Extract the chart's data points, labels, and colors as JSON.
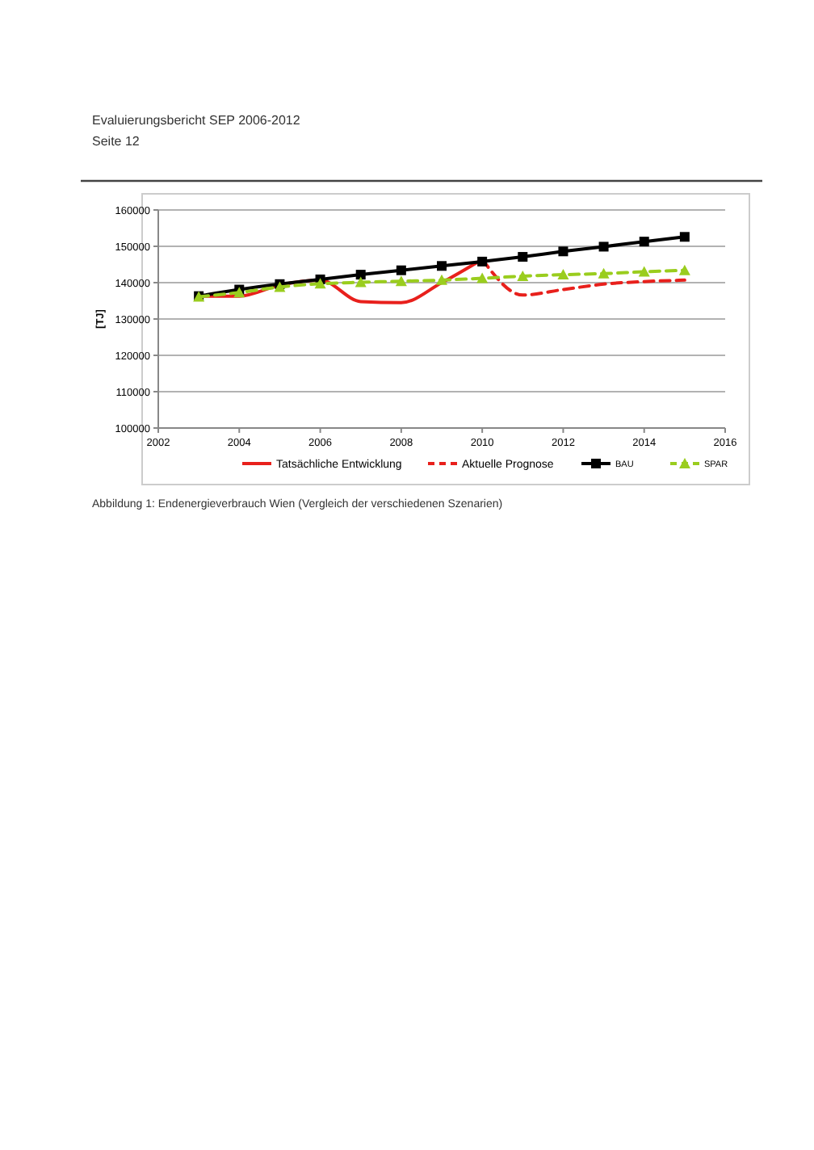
{
  "chart_data": {
    "type": "line",
    "title": "Abbildung 1: Endenergieverbrauch Wien (Vergleich der verschiedenen Szenarien)",
    "annotations": [
      "Evaluierungsbericht SEP 2006-2012",
      "Seite 12"
    ],
    "ylabel": "[TJ]",
    "xlim": [
      2002,
      2016
    ],
    "xticks": [
      2002,
      2004,
      2006,
      2008,
      2010,
      2012,
      2014,
      2016
    ],
    "ylim": [
      100000,
      160000
    ],
    "yticks": [
      100000,
      110000,
      120000,
      130000,
      140000,
      150000,
      160000
    ],
    "grid": "y",
    "legend": "bottom",
    "series": [
      {
        "name": "Tatsächliche Entwicklung",
        "color": "#e8201c",
        "line_style": "solid",
        "marker": "none",
        "x": [
          2003,
          2004,
          2005,
          2006,
          2007,
          2008,
          2009,
          2010
        ],
        "values": [
          136300,
          136300,
          139300,
          140700,
          134800,
          134500,
          140000,
          146400
        ]
      },
      {
        "name": "Aktuelle Prognose",
        "color": "#e8201c",
        "line_style": "dashed",
        "marker": "none",
        "x": [
          2010,
          2011,
          2012,
          2013,
          2014,
          2015
        ],
        "values": [
          146400,
          136600,
          138100,
          139600,
          140300,
          140700
        ]
      },
      {
        "name": "BAU",
        "color": "#000000",
        "line_style": "solid",
        "marker": "square",
        "x": [
          2003,
          2004,
          2005,
          2006,
          2007,
          2008,
          2009,
          2010,
          2011,
          2012,
          2013,
          2014,
          2015
        ],
        "values": [
          136300,
          138100,
          139600,
          140900,
          142200,
          143400,
          144600,
          145800,
          147100,
          148600,
          149900,
          151300,
          152600
        ]
      },
      {
        "name": "SPAR",
        "color": "#9acd1e",
        "line_style": "dashed",
        "marker": "triangle",
        "x": [
          2003,
          2004,
          2005,
          2006,
          2007,
          2008,
          2009,
          2010,
          2011,
          2012,
          2013,
          2014,
          2015
        ],
        "values": [
          136100,
          137300,
          138800,
          139700,
          140100,
          140400,
          140700,
          141200,
          141800,
          142200,
          142500,
          143000,
          143400
        ]
      }
    ]
  }
}
